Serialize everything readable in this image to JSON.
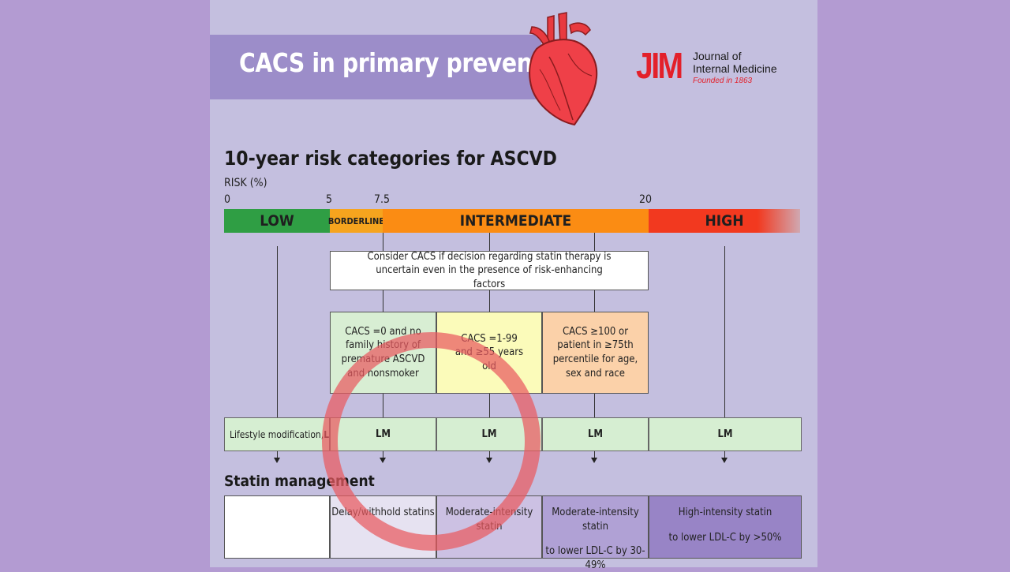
{
  "header": {
    "title": "CACS in primary prevention",
    "logo": {
      "mark": "JIM",
      "line1": "Journal of",
      "line2": "Internal Medicine",
      "founded": "Founded in 1863"
    },
    "heart_icon": "heart-illustration"
  },
  "section_title": "10-year risk categories for ASCVD",
  "risk_axis": {
    "label": "RISK (%)",
    "ticks": [
      "0",
      "5",
      "7.5",
      "20"
    ]
  },
  "risk_bands": [
    {
      "label": "LOW",
      "color": "#2f9e44"
    },
    {
      "label": "BORDERLINE",
      "color": "#f6a41e"
    },
    {
      "label": "INTERMEDIATE",
      "color": "#fb8c13"
    },
    {
      "label": "HIGH",
      "color": "#f2391f"
    }
  ],
  "consider_box": "Consider CACS if decision regarding statin therapy is uncertain even in the presence of risk-enhancing factors",
  "cacs_boxes": [
    {
      "text": "CACS =0 and no family history of premature ASCVD and nonsmoker",
      "color": "#d8eed3"
    },
    {
      "text": "CACS =1-99 and ≥55 years old",
      "color": "#fbfbba"
    },
    {
      "text": "CACS ≥100 or patient in ≥75th percentile for age, sex and race",
      "color": "#fbd1a9"
    }
  ],
  "lifestyle_row": {
    "first": "Lifestyle modification, ",
    "first_bold": "LM",
    "cells": [
      "LM",
      "LM",
      "LM",
      "LM"
    ]
  },
  "statin_title": "Statin management",
  "statin_cells": [
    {
      "line1": "",
      "line2": "",
      "color": "#ffffff"
    },
    {
      "line1": "Delay/withhold statins",
      "line2": "",
      "color": "#e6e2f1"
    },
    {
      "line1": "Moderate-intensity statin",
      "line2": "",
      "color": "#ccc1e3"
    },
    {
      "line1": "Moderate-intensity statin",
      "line2": "to lower LDL-C by 30-49%",
      "color": "#b0a1d5"
    },
    {
      "line1": "High-intensity statin",
      "line2": "to lower LDL-C by >50%",
      "color": "#9884c6"
    }
  ],
  "highlight": {
    "shape": "circle",
    "color": "#e95a60"
  }
}
